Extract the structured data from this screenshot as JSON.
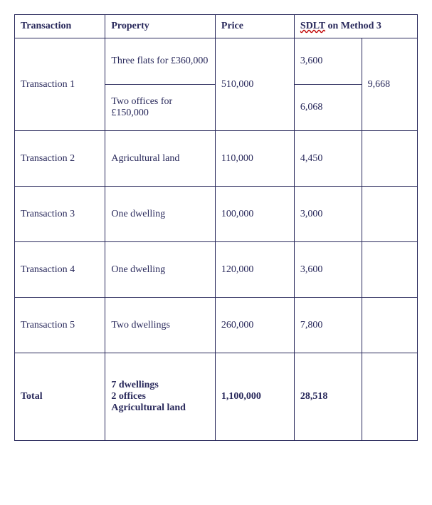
{
  "headers": {
    "transaction": "Transaction",
    "property": "Property",
    "price": "Price",
    "sdlt_prefix": "SDLT",
    "sdlt_suffix": " on Method 3"
  },
  "t1": {
    "label": "Transaction 1",
    "prop_a": "Three flats for £360,000",
    "prop_b": "Two offices for £150,000",
    "price": "510,000",
    "sdlt_a": "3,600",
    "sdlt_b": "6,068",
    "sdlt_total": "9,668"
  },
  "t2": {
    "label": "Transaction 2",
    "property": "Agricultural land",
    "price": "110,000",
    "sdlt": "4,450"
  },
  "t3": {
    "label": "Transaction 3",
    "property": "One dwelling",
    "price": "100,000",
    "sdlt": "3,000"
  },
  "t4": {
    "label": "Transaction 4",
    "property": "One dwelling",
    "price": "120,000",
    "sdlt": "3,600"
  },
  "t5": {
    "label": "Transaction 5",
    "property": "Two dwellings",
    "price": "260,000",
    "sdlt": "7,800"
  },
  "total": {
    "label": "Total",
    "line1": "7 dwellings",
    "line2": "2 offices",
    "line3": "Agricultural land",
    "price": "1,100,000",
    "sdlt": "28,518"
  }
}
